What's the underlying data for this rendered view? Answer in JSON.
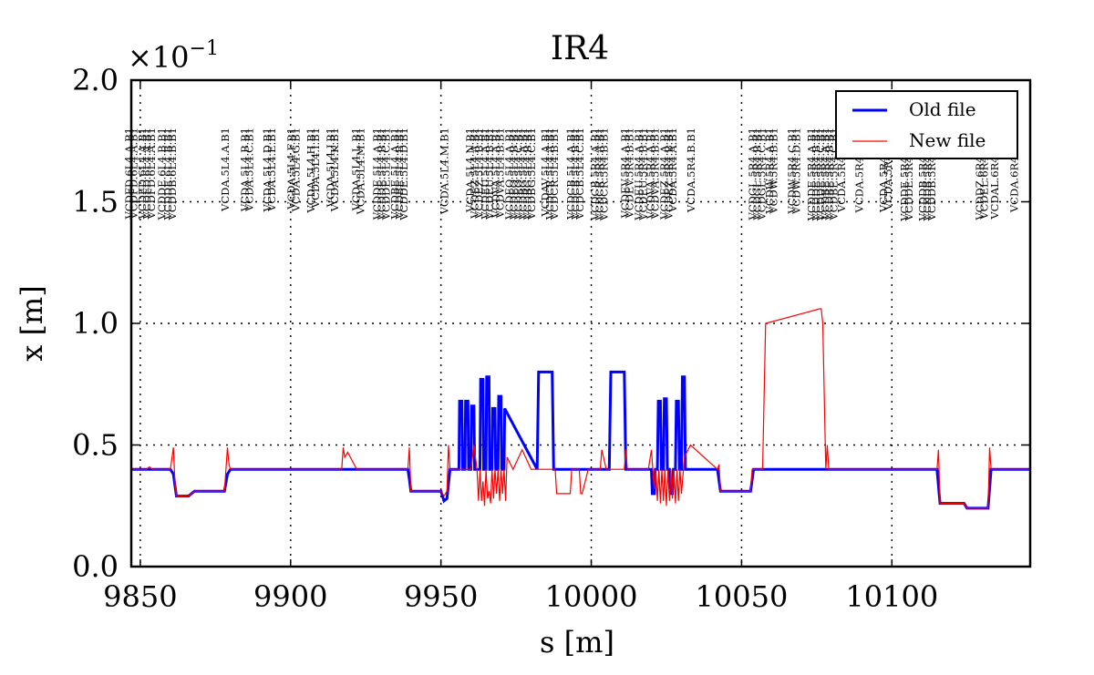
{
  "chart_data": {
    "type": "line",
    "title": "IR4",
    "xlabel": "s [m]",
    "ylabel": "x [m]",
    "y_multiplier_label": "×10",
    "y_multiplier_exponent": "−1",
    "xlim": [
      9847,
      10146
    ],
    "ylim": [
      0.0,
      2.0
    ],
    "x_ticks": [
      9850,
      9900,
      9950,
      10000,
      10050,
      10100
    ],
    "x_tick_labels": [
      "9850",
      "9900",
      "9950",
      "10000",
      "10050",
      "10100"
    ],
    "y_ticks": [
      0.0,
      0.5,
      1.0,
      1.5,
      2.0
    ],
    "y_tick_labels": [
      "0.0",
      "0.5",
      "1.0",
      "1.5",
      "2.0"
    ],
    "grid": true,
    "legend_position": "top-right",
    "series": [
      {
        "name": "Old file",
        "color": "#0000ff",
        "x": [
          9847,
          9860,
          9861,
          9862,
          9866,
          9868,
          9878,
          9879,
          9880,
          9939,
          9939.5,
          9940,
          9950,
          9951,
          9952,
          9953,
          9953.5,
          9954,
          9956,
          9956.2,
          9957,
          9957.2,
          9958,
          9958.2,
          9959,
          9959.2,
          9960,
          9960.2,
          9961,
          9961.2,
          9963,
          9963.2,
          9964,
          9964.2,
          9965,
          9965.2,
          9966,
          9966.2,
          9967,
          9967.2,
          9968,
          9968.2,
          9969,
          9969.2,
          9970,
          9970.2,
          9971,
          9971.2,
          9982,
          9982.5,
          9987,
          9987.5,
          10006,
          10006.5,
          10011,
          10011.5,
          10020,
          10020.3,
          10021,
          10021.3,
          10022,
          10022.3,
          10023,
          10023.3,
          10024,
          10024.3,
          10025,
          10025.3,
          10026,
          10026.3,
          10027,
          10027.3,
          10028,
          10028.3,
          10029,
          10029.3,
          10030,
          10030.3,
          10031,
          10031.3,
          10042,
          10043,
          10053,
          10054,
          10115,
          10116,
          10124,
          10125,
          10132,
          10133,
          10146
        ],
        "y": [
          0.4,
          0.4,
          0.38,
          0.29,
          0.29,
          0.31,
          0.31,
          0.38,
          0.4,
          0.4,
          0.36,
          0.31,
          0.31,
          0.27,
          0.28,
          0.4,
          0.4,
          0.4,
          0.4,
          0.68,
          0.68,
          0.4,
          0.4,
          0.68,
          0.68,
          0.4,
          0.4,
          0.66,
          0.66,
          0.4,
          0.4,
          0.77,
          0.77,
          0.4,
          0.4,
          0.78,
          0.78,
          0.4,
          0.4,
          0.65,
          0.65,
          0.4,
          0.4,
          0.7,
          0.7,
          0.4,
          0.4,
          0.65,
          0.4,
          0.8,
          0.8,
          0.4,
          0.4,
          0.8,
          0.8,
          0.4,
          0.4,
          0.3,
          0.3,
          0.4,
          0.4,
          0.68,
          0.68,
          0.4,
          0.4,
          0.69,
          0.69,
          0.4,
          0.4,
          0.3,
          0.3,
          0.4,
          0.4,
          0.68,
          0.68,
          0.4,
          0.4,
          0.78,
          0.78,
          0.4,
          0.4,
          0.31,
          0.31,
          0.4,
          0.4,
          0.26,
          0.26,
          0.24,
          0.24,
          0.4,
          0.4
        ]
      },
      {
        "name": "New file",
        "color": "#ff0000",
        "x": [
          9847,
          9852,
          9853,
          9854,
          9860,
          9861,
          9861.5,
          9862,
          9866,
          9868,
          9878,
          9879,
          9879.5,
          9880,
          9917,
          9917.5,
          9918,
          9919,
          9922,
          9939,
          9939.5,
          9940,
          9950,
          9951,
          9952,
          9952.5,
          9953,
          9960,
          9961,
          9962,
          9962.5,
          9963,
          9963.5,
          9964,
          9964.5,
          9965,
          9965.5,
          9966,
          9966.5,
          9967,
          9967.5,
          9968,
          9968.5,
          9969,
          9969.5,
          9970,
          9970.5,
          9971,
          9971.5,
          9972,
          9974,
          9977,
          9980,
          9983,
          9988,
          9988.5,
          9993,
          9993.5,
          9995,
          9996,
          9996.5,
          9997,
          9999,
          10003,
          10003.5,
          10005,
          10008,
          10010,
          10011,
          10011.5,
          10012,
          10017,
          10019,
          10020,
          10020.5,
          10021,
          10021.5,
          10022,
          10022.5,
          10023,
          10023.5,
          10024,
          10024.5,
          10025,
          10025.5,
          10026,
          10026.5,
          10027,
          10027.5,
          10028,
          10028.5,
          10029,
          10029.5,
          10030,
          10031,
          10033,
          10042,
          10042.5,
          10043,
          10053,
          10053.5,
          10054,
          10056,
          10057,
          10058,
          10076,
          10076.5,
          10077,
          10078,
          10078.5,
          10079,
          10115,
          10115.5,
          10116,
          10124,
          10125,
          10132,
          10132.5,
          10133,
          10146
        ],
        "y": [
          0.4,
          0.4,
          0.41,
          0.4,
          0.4,
          0.49,
          0.35,
          0.29,
          0.29,
          0.31,
          0.31,
          0.49,
          0.42,
          0.4,
          0.4,
          0.49,
          0.45,
          0.47,
          0.4,
          0.4,
          0.49,
          0.31,
          0.31,
          0.29,
          0.31,
          0.5,
          0.4,
          0.4,
          0.5,
          0.4,
          0.27,
          0.4,
          0.27,
          0.35,
          0.25,
          0.4,
          0.28,
          0.31,
          0.26,
          0.4,
          0.28,
          0.4,
          0.3,
          0.4,
          0.27,
          0.4,
          0.3,
          0.4,
          0.27,
          0.45,
          0.4,
          0.48,
          0.4,
          0.4,
          0.4,
          0.3,
          0.3,
          0.4,
          0.4,
          0.4,
          0.3,
          0.3,
          0.4,
          0.4,
          0.48,
          0.4,
          0.4,
          0.4,
          0.4,
          0.48,
          0.4,
          0.4,
          0.4,
          0.48,
          0.4,
          0.32,
          0.4,
          0.27,
          0.4,
          0.26,
          0.4,
          0.27,
          0.4,
          0.25,
          0.4,
          0.27,
          0.4,
          0.28,
          0.4,
          0.26,
          0.4,
          0.27,
          0.4,
          0.3,
          0.45,
          0.5,
          0.4,
          0.42,
          0.31,
          0.31,
          0.4,
          0.4,
          0.4,
          0.4,
          1.0,
          1.06,
          1.06,
          1.0,
          0.4,
          0.5,
          0.4,
          0.4,
          0.48,
          0.26,
          0.26,
          0.24,
          0.24,
          0.49,
          0.4,
          0.4
        ]
      }
    ],
    "annotations": [
      {
        "s": 9846.5,
        "text": "VCDFD.6L4.A.B1"
      },
      {
        "s": 9848,
        "text": "VCDFD.6L4.A.B1"
      },
      {
        "s": 9851,
        "text": "VCDFD.6L4.A.B1"
      },
      {
        "s": 9852.5,
        "text": "VCDFD.6L4.A.B1"
      },
      {
        "s": 9854,
        "text": "VCDFD.6L4.A.B1"
      },
      {
        "s": 9857.5,
        "text": "VCDDE.6L4.B.B1"
      },
      {
        "s": 9859.5,
        "text": "VCDDE.6L4.B.B1"
      },
      {
        "s": 9861,
        "text": "VCDDB.6L4.B.B1"
      },
      {
        "s": 9878.5,
        "text": "VCDA.5L4.A.B1"
      },
      {
        "s": 9885,
        "text": "VCDA.5L4.B.B1"
      },
      {
        "s": 9886.5,
        "text": "VCDA.5L4.C.B1"
      },
      {
        "s": 9892.5,
        "text": "VCDA.5L4.D.B1"
      },
      {
        "s": 9894,
        "text": "VCDA.5L4.E.B1"
      },
      {
        "s": 9900.5,
        "text": "VCDA.5L4.F.B1"
      },
      {
        "s": 9902,
        "text": "VCDA.5L4.G.B1"
      },
      {
        "s": 9907,
        "text": "VCDA.5L4.H.B1"
      },
      {
        "s": 9908.5,
        "text": "VCDA.5L4.I.B1"
      },
      {
        "s": 9913.5,
        "text": "VCDA.5L4.J.B1"
      },
      {
        "s": 9915,
        "text": "VCDA.5L4.K.B1"
      },
      {
        "s": 9922,
        "text": "VCDA.5L4.L.B1"
      },
      {
        "s": 9923.5,
        "text": "VCDA.5L4.M.B1"
      },
      {
        "s": 9929,
        "text": "VCDDE.5L4.A.B1"
      },
      {
        "s": 9930.5,
        "text": "VCDDE.5L4.B.B1"
      },
      {
        "s": 9932,
        "text": "VCDDE.5L4.C.B1"
      },
      {
        "s": 9935,
        "text": "VCDBE.5L4.A.B1"
      },
      {
        "s": 9936.5,
        "text": "VCDBE.5L4.B.B1"
      },
      {
        "s": 9938,
        "text": "VCDDE.5L4.D.B1"
      },
      {
        "s": 9951.5,
        "text": "VCDA.5L4.M.B1"
      },
      {
        "s": 9960,
        "text": "VCDA.5L4.N.B1"
      },
      {
        "s": 9961.5,
        "text": "VCDEZ.5L4.A.B1"
      },
      {
        "s": 9963,
        "text": "VCDEZ.5L4.B.B1"
      },
      {
        "s": 9965,
        "text": "VCDEU.5L4.A.B1"
      },
      {
        "s": 9966.5,
        "text": "VCDEU.5L4.B.B1"
      },
      {
        "s": 9968.5,
        "text": "VCDVA.5L4.A.B1"
      },
      {
        "s": 9970,
        "text": "VCDVA.5L4.B.B1"
      },
      {
        "s": 9973,
        "text": "VCDEQ.5L4.A.B1"
      },
      {
        "s": 9974.5,
        "text": "VCDEQ.5L4.B.B1"
      },
      {
        "s": 9976,
        "text": "VCDEQ.5L4.C.B1"
      },
      {
        "s": 9977.5,
        "text": "VCDBG.5L4.A.B1"
      },
      {
        "s": 9979,
        "text": "VCDBG.5L4.B.B1"
      },
      {
        "s": 9980.5,
        "text": "VCDBG.5L4.C.B1"
      },
      {
        "s": 9985,
        "text": "VCDAV.5L4.A.B1"
      },
      {
        "s": 9986.5,
        "text": "VCDCR.5L4.A.B1"
      },
      {
        "s": 9988,
        "text": "VCDCR.5L4.B.B1"
      },
      {
        "s": 9993.5,
        "text": "VCDCB.5L4.A.B1"
      },
      {
        "s": 9995,
        "text": "VCDCB.5L4.B.B1"
      },
      {
        "s": 9996.5,
        "text": "VCDCB.5L4.C.B1"
      },
      {
        "s": 10001.5,
        "text": "VCDCB.5R4.A.B1"
      },
      {
        "s": 10003,
        "text": "VCDCR.5R4.A.B1"
      },
      {
        "s": 10004.5,
        "text": "VCDCR.5R4.B.B1"
      },
      {
        "s": 10011.5,
        "text": "VCDEV.5R4.A.B1"
      },
      {
        "s": 10013,
        "text": "VCDEV.5R4.B.B1"
      },
      {
        "s": 10016,
        "text": "VCDEU.5R4.A.B1"
      },
      {
        "s": 10017.5,
        "text": "VCDEU.5R4.B.B1"
      },
      {
        "s": 10020,
        "text": "VCDVA.5R4.A.B1"
      },
      {
        "s": 10021.5,
        "text": "VCDVA.5R4.B.B1"
      },
      {
        "s": 10024.5,
        "text": "VCDEZ.5R4.A.B1"
      },
      {
        "s": 10026,
        "text": "VCDEZ.5R4.B.B1"
      },
      {
        "s": 10027.5,
        "text": "VCDA.5R4.A.B1"
      },
      {
        "s": 10033.5,
        "text": "VCDA.5R4.B.B1"
      },
      {
        "s": 10054,
        "text": "VCDGL.5R4.A.B1"
      },
      {
        "s": 10055.5,
        "text": "VCDGL.5R4.B.B1"
      },
      {
        "s": 10057,
        "text": "VCDGL.5R4.C.B1"
      },
      {
        "s": 10059.5,
        "text": "VCDW.5R4.A.B1"
      },
      {
        "s": 10061,
        "text": "VCDW.5R4.B.B1"
      },
      {
        "s": 10067,
        "text": "VCDW.5R4.C.B1"
      },
      {
        "s": 10068.5,
        "text": "VCDW.5R4.D.B1"
      },
      {
        "s": 10073.5,
        "text": "VCDDE.5R4.A.B1"
      },
      {
        "s": 10075,
        "text": "VCDDE.5R4.B.B1"
      },
      {
        "s": 10076.5,
        "text": "VCDDE.5R4.C.B1"
      },
      {
        "s": 10078,
        "text": "VCDBE.5R4.A.B1"
      },
      {
        "s": 10079.5,
        "text": "VCDBE.5R4.B.B1"
      },
      {
        "s": 10081,
        "text": "VCDBE.5R4.C.B1"
      },
      {
        "s": 10083.5,
        "text": "VCDA.5R4.C.B1"
      },
      {
        "s": 10089.5,
        "text": "VCDA.5R4.D.B1"
      },
      {
        "s": 10097.5,
        "text": "VCDA.5R4.E.B1"
      },
      {
        "s": 10099,
        "text": "VCDA.5R4.F.B1"
      },
      {
        "s": 10104.5,
        "text": "VCDDE.5R4.D.B1"
      },
      {
        "s": 10106,
        "text": "VCDDE.5R4.E.B1"
      },
      {
        "s": 10110.5,
        "text": "VCDDB.5R4.A.B1"
      },
      {
        "s": 10112,
        "text": "VCDDB.5R4.B.B1"
      },
      {
        "s": 10113.5,
        "text": "VCDDB.5R4.C.B1"
      },
      {
        "s": 10129.5,
        "text": "VCDDZ.6R4.A.B1"
      },
      {
        "s": 10131,
        "text": "VCDEL.6R4.A.B1"
      },
      {
        "s": 10134.5,
        "text": "VCDAL.6R4.A.B1"
      },
      {
        "s": 10141,
        "text": "VCDA.6R4.B.B1"
      }
    ]
  }
}
